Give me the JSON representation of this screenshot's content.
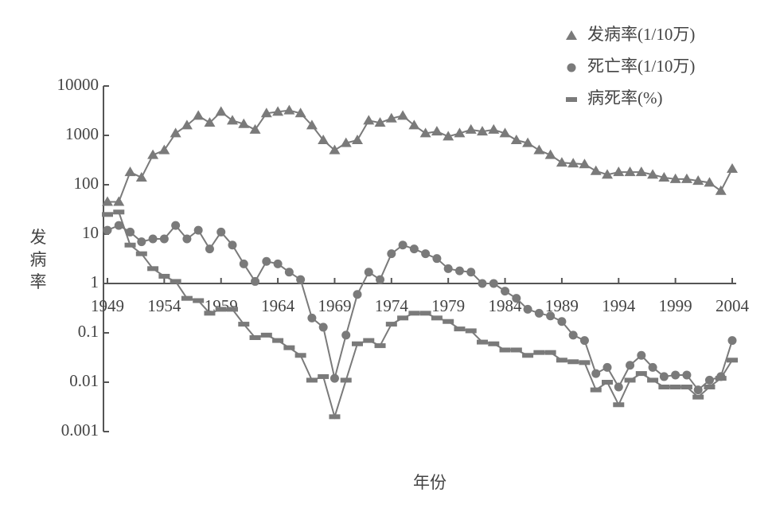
{
  "chart_data": {
    "type": "line",
    "log_y": true,
    "ylabel": "发病率",
    "xlabel": "年份",
    "x": [
      1949,
      1950,
      1951,
      1952,
      1953,
      1954,
      1955,
      1956,
      1957,
      1958,
      1959,
      1960,
      1961,
      1962,
      1963,
      1964,
      1965,
      1966,
      1967,
      1968,
      1969,
      1970,
      1971,
      1972,
      1973,
      1974,
      1975,
      1976,
      1977,
      1978,
      1979,
      1980,
      1981,
      1982,
      1983,
      1984,
      1985,
      1986,
      1987,
      1988,
      1989,
      1990,
      1991,
      1992,
      1993,
      1994,
      1995,
      1996,
      1997,
      1998,
      1999,
      2000,
      2001,
      2002,
      2003,
      2004
    ],
    "xlim": [
      1949,
      2004
    ],
    "xticks": [
      1949,
      1954,
      1959,
      1964,
      1969,
      1974,
      1979,
      1984,
      1989,
      1994,
      1999,
      2004
    ],
    "ylim": [
      0.001,
      10000
    ],
    "yticks": [
      10000,
      1000,
      100,
      10,
      1,
      0.1,
      0.01,
      0.001
    ],
    "x_axis_at": 1,
    "legend": "upper right",
    "series": [
      {
        "name": "发病率(1/10万)",
        "color": "#7a7a7a",
        "marker": "triangle",
        "values": [
          45,
          45,
          180,
          140,
          400,
          500,
          1100,
          1600,
          2500,
          1800,
          3000,
          2000,
          1700,
          1300,
          2800,
          3000,
          3200,
          2800,
          1600,
          800,
          500,
          700,
          800,
          2000,
          1800,
          2200,
          2500,
          1600,
          1100,
          1200,
          950,
          1100,
          1300,
          1200,
          1300,
          1100,
          800,
          700,
          500,
          400,
          280,
          270,
          260,
          190,
          160,
          180,
          180,
          180,
          160,
          140,
          130,
          130,
          120,
          110,
          75,
          210
        ]
      },
      {
        "name": "死亡率(1/10万)",
        "color": "#7a7a7a",
        "marker": "circle",
        "values": [
          12,
          15,
          11,
          7,
          8,
          8,
          15,
          8,
          12,
          5,
          11,
          6,
          2.5,
          1.1,
          2.8,
          2.5,
          1.7,
          1.2,
          0.2,
          0.13,
          0.012,
          0.09,
          0.6,
          1.7,
          1.2,
          4,
          6,
          5,
          4,
          3.2,
          2,
          1.8,
          1.7,
          1,
          1,
          0.7,
          0.5,
          0.3,
          0.25,
          0.22,
          0.17,
          0.09,
          0.07,
          0.015,
          0.02,
          0.008,
          0.022,
          0.035,
          0.02,
          0.013,
          0.014,
          0.014,
          0.007,
          0.011,
          0.013,
          0.07
        ]
      },
      {
        "name": "病死率(%)",
        "color": "#7a7a7a",
        "marker": "dash",
        "values": [
          25,
          28,
          6,
          4,
          2,
          1.4,
          1.1,
          0.5,
          0.45,
          0.25,
          0.3,
          0.3,
          0.15,
          0.08,
          0.09,
          0.07,
          0.05,
          0.035,
          0.011,
          0.013,
          0.002,
          0.011,
          0.06,
          0.07,
          0.055,
          0.15,
          0.2,
          0.25,
          0.25,
          0.2,
          0.17,
          0.12,
          0.11,
          0.065,
          0.06,
          0.045,
          0.045,
          0.035,
          0.04,
          0.04,
          0.028,
          0.026,
          0.025,
          0.007,
          0.01,
          0.0035,
          0.011,
          0.015,
          0.011,
          0.008,
          0.008,
          0.008,
          0.005,
          0.008,
          0.012,
          0.028
        ]
      }
    ]
  }
}
